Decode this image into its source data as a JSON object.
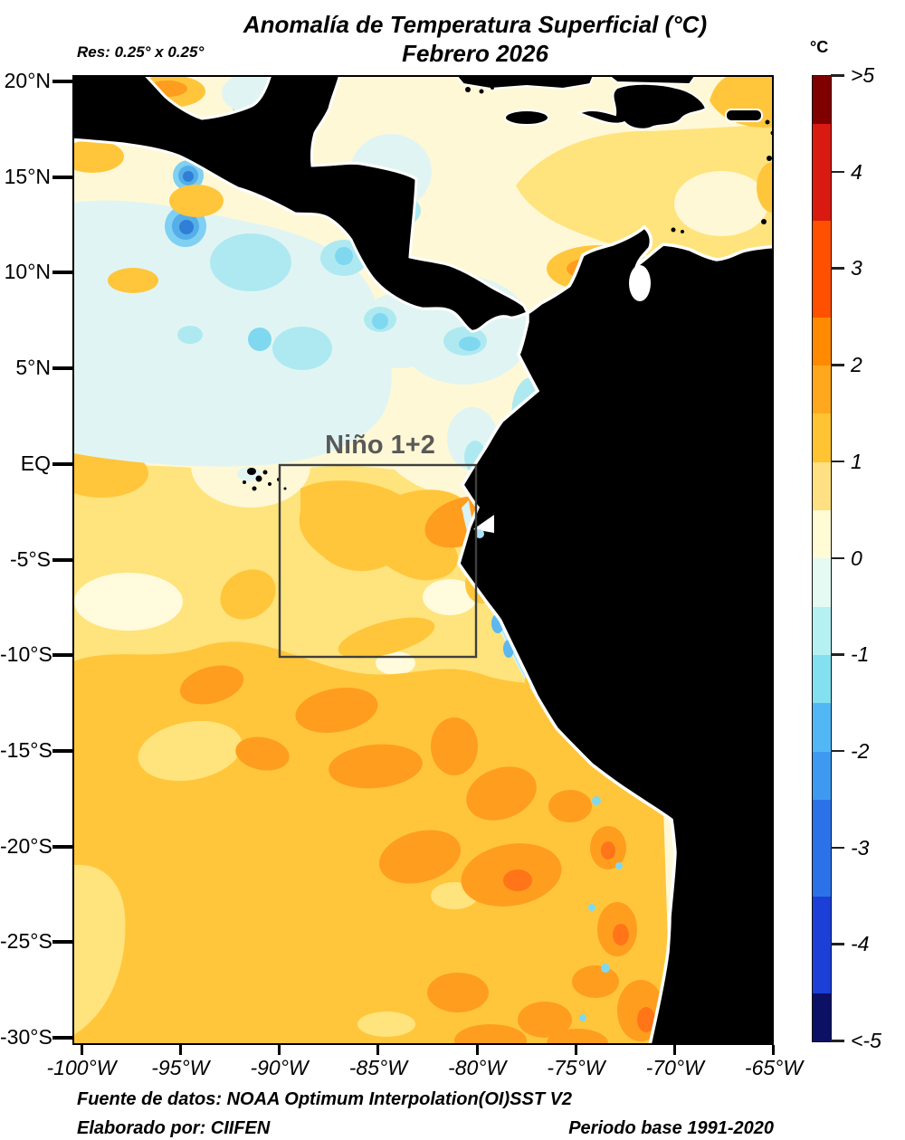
{
  "header": {
    "title": "Anomalía de Temperatura Superficial (°C)",
    "subtitle": "Febrero 2026",
    "resolution": "Res: 0.25° x 0.25°"
  },
  "colorbar": {
    "unit": "°C",
    "ticks": [
      {
        "value": 5,
        "label": ">5"
      },
      {
        "value": 4,
        "label": "4"
      },
      {
        "value": 3,
        "label": "3"
      },
      {
        "value": 2,
        "label": "2"
      },
      {
        "value": 1,
        "label": "1"
      },
      {
        "value": 0,
        "label": "0"
      },
      {
        "value": -1,
        "label": "-1"
      },
      {
        "value": -2,
        "label": "-2"
      },
      {
        "value": -3,
        "label": "-3"
      },
      {
        "value": -4,
        "label": "-4"
      },
      {
        "value": -5,
        "label": "<-5"
      }
    ],
    "segments": [
      {
        "range": "4.5 to >5",
        "span": 0.5,
        "color": "#800000"
      },
      {
        "range": "3.5 to 4.5",
        "span": 1.0,
        "color": "#D81A10"
      },
      {
        "range": "2.5 to 3.5",
        "span": 1.0,
        "color": "#FF5000"
      },
      {
        "range": "2.0 to 2.5",
        "span": 0.5,
        "color": "#FF8A00"
      },
      {
        "range": "1.5 to 2.0",
        "span": 0.5,
        "color": "#FFA81E"
      },
      {
        "range": "1.0 to 1.5",
        "span": 0.5,
        "color": "#FFC432"
      },
      {
        "range": "0.5 to 1.0",
        "span": 0.5,
        "color": "#FFE083"
      },
      {
        "range": "0.0 to 0.5",
        "span": 0.5,
        "color": "#FFFBD5"
      },
      {
        "range": "-0.5 to 0.0",
        "span": 0.5,
        "color": "#E4FAF3"
      },
      {
        "range": "-1.0 to -0.5",
        "span": 0.5,
        "color": "#B5F0F2"
      },
      {
        "range": "-1.5 to -1.0",
        "span": 0.5,
        "color": "#82E0F0"
      },
      {
        "range": "-2.0 to -1.5",
        "span": 0.5,
        "color": "#52B8F5"
      },
      {
        "range": "-2.5 to -2.0",
        "span": 0.5,
        "color": "#3E9AF0"
      },
      {
        "range": "-3.5 to -2.5",
        "span": 1.0,
        "color": "#2B72E8"
      },
      {
        "range": "-4.5 to -3.5",
        "span": 1.0,
        "color": "#1C3FD8"
      },
      {
        "range": "<-5 to -4.5",
        "span": 0.5,
        "color": "#0D1166"
      }
    ]
  },
  "axes": {
    "lat_ticks": [
      {
        "value": 20,
        "label": "20°N"
      },
      {
        "value": 15,
        "label": "15°N"
      },
      {
        "value": 10,
        "label": "10°N"
      },
      {
        "value": 5,
        "label": "5°N"
      },
      {
        "value": 0,
        "label": "EQ"
      },
      {
        "value": -5,
        "label": "-5°S"
      },
      {
        "value": -10,
        "label": "-10°S"
      },
      {
        "value": -15,
        "label": "-15°S"
      },
      {
        "value": -20,
        "label": "-20°S"
      },
      {
        "value": -25,
        "label": "-25°S"
      },
      {
        "value": -30,
        "label": "-30°S"
      }
    ],
    "lon_ticks": [
      {
        "value": -100,
        "label": "-100°W"
      },
      {
        "value": -95,
        "label": "-95°W"
      },
      {
        "value": -90,
        "label": "-90°W"
      },
      {
        "value": -85,
        "label": "-85°W"
      },
      {
        "value": -80,
        "label": "-80°W"
      },
      {
        "value": -75,
        "label": "-75°W"
      },
      {
        "value": -70,
        "label": "-70°W"
      },
      {
        "value": -65,
        "label": "-65°W"
      }
    ]
  },
  "region_box": {
    "label": "Niño 1+2"
  },
  "footer": {
    "source": "Fuente de datos: NOAA Optimum Interpolation(OI)SST V2",
    "author": "Elaborado por: CIIFEN",
    "baseline": "Periodo base 1991-2020"
  },
  "map_colors": {
    "land": "#000000",
    "coast_gap": "#FFFFFF",
    "ocean_pale": "#FFF8D6",
    "ocean_yellow": "#FFE37C",
    "ocean_amber": "#FFC63C",
    "ocean_orange": "#FF9D1F",
    "ocean_hot": "#FF7518",
    "ocean_cream": "#FFFBDC",
    "cool_pale": "#E0F5F3",
    "cool_light": "#AEE9F1",
    "cool_cyan": "#7FD8EF",
    "cool_sky": "#54AEE9",
    "cool_blue": "#2F7FD6",
    "box_border": "#3F3F3F",
    "box_label": "#595959"
  }
}
